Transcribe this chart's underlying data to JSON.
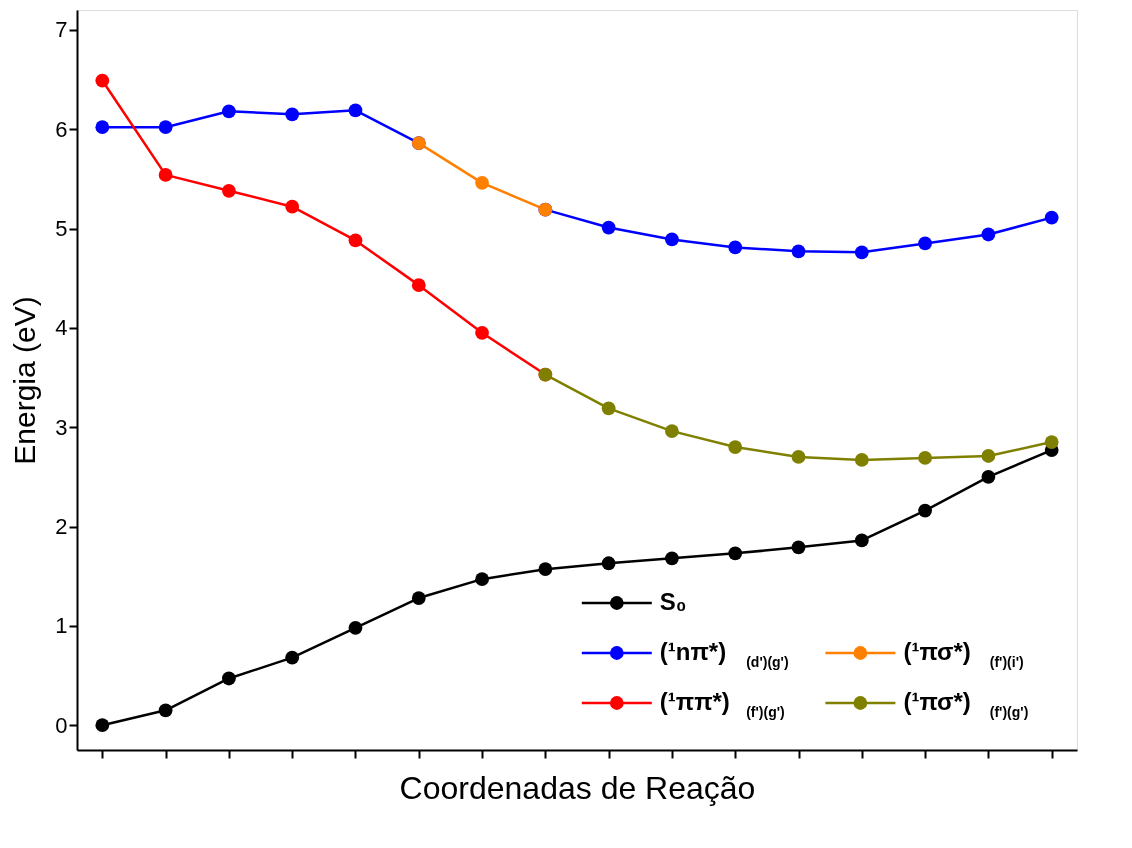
{
  "chart_data": {
    "type": "line",
    "xlabel": "Coordenadas de Reação",
    "ylabel": "Energia (eV)",
    "categories": [
      null,
      null,
      null,
      null,
      null,
      null,
      null,
      null,
      null,
      null,
      null,
      null,
      null,
      null,
      null,
      null
    ],
    "ylim": [
      -0.25,
      7.2
    ],
    "yticks": [
      0,
      1,
      2,
      3,
      4,
      5,
      6,
      7
    ],
    "tick_labels": "y",
    "grid": false,
    "marker": "circle",
    "line_style": "solid",
    "legend": "bottom right",
    "series": [
      {
        "name": "S₀",
        "color": "#000000",
        "values": [
          0,
          0.15,
          0.47,
          0.68,
          0.98,
          1.28,
          1.47,
          1.57,
          1.63,
          1.68,
          1.73,
          1.79,
          1.86,
          2.16,
          2.5,
          2.77
        ]
      },
      {
        "name": "(¹nπ*)$_{(d')(g')}$",
        "color": "#0000ff",
        "values": [
          6.02,
          6.02,
          6.18,
          6.15,
          6.19,
          5.86,
          null,
          5.19,
          5.01,
          4.89,
          4.81,
          4.77,
          4.76,
          4.85,
          4.94,
          5.11
        ]
      },
      {
        "name": "(¹πσ*)$_{(f')(i')}$",
        "color": "#ff8000",
        "values": [
          null,
          null,
          null,
          null,
          null,
          5.86,
          5.46,
          5.19,
          null,
          null,
          null,
          null,
          null,
          null,
          null,
          null
        ]
      },
      {
        "name": "(¹ππ*)$_{(f')(g')}$",
        "color": "#ff0000",
        "values": [
          6.49,
          5.54,
          5.38,
          5.22,
          4.88,
          4.43,
          3.95,
          3.53,
          null,
          null,
          null,
          null,
          null,
          null,
          null,
          null
        ]
      },
      {
        "name": "(¹πσ*)$_{(f')(g')}$",
        "color": "#808000",
        "values": [
          null,
          null,
          null,
          null,
          null,
          null,
          null,
          3.53,
          3.19,
          2.96,
          2.8,
          2.7,
          2.67,
          2.69,
          2.71,
          2.85
        ]
      }
    ]
  }
}
